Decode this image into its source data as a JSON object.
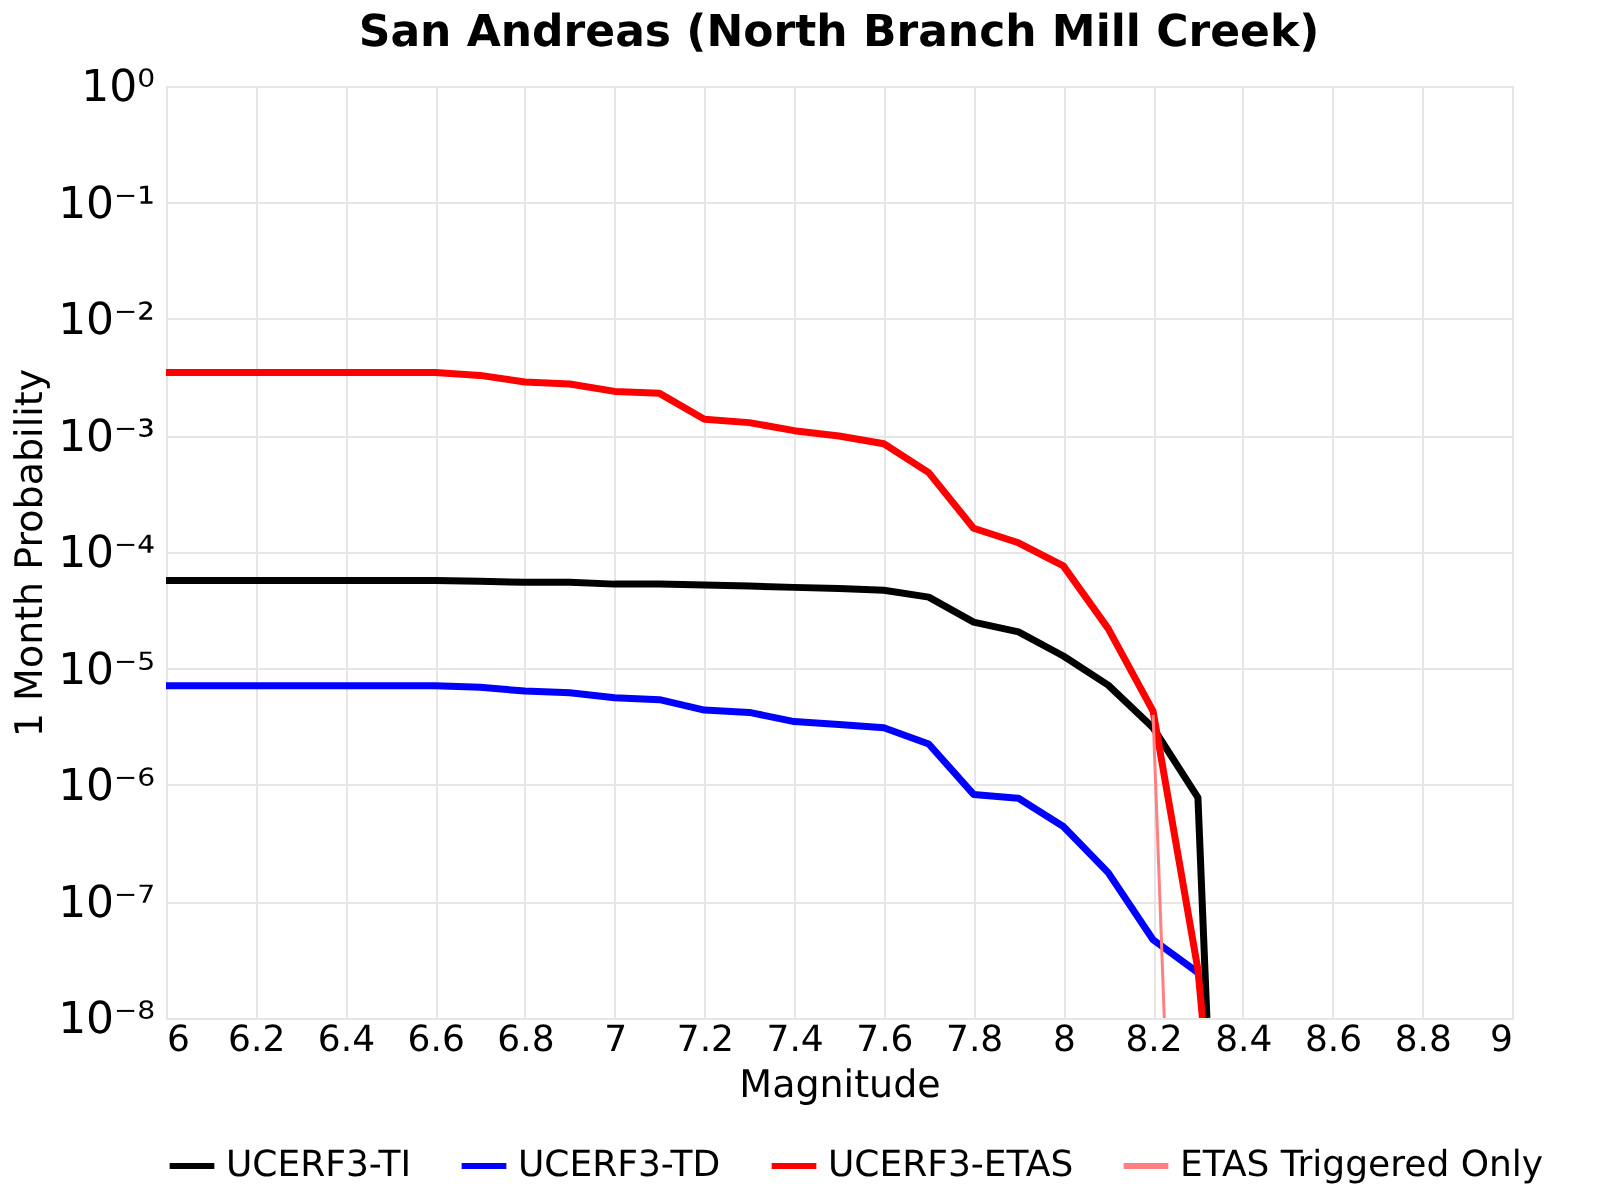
{
  "chart_data": {
    "type": "line",
    "title": "San Andreas (North Branch Mill Creek)",
    "xlabel": "Magnitude",
    "ylabel": "1 Month Probability",
    "log": "y",
    "grid": true,
    "legend": "bottom",
    "line_style": "solid",
    "marker": "none",
    "xlim": [
      6,
      9
    ],
    "xticks": [
      6,
      6.2,
      6.4,
      6.6,
      6.8,
      7,
      7.2,
      7.4,
      7.6,
      7.8,
      8,
      8.2,
      8.4,
      8.6,
      8.8,
      9
    ],
    "ylim": [
      1e-08,
      1
    ],
    "yticks": [
      {
        "value": 1e-08,
        "label": "10⁻⁸"
      },
      {
        "value": 1e-07,
        "label": "10⁻⁷"
      },
      {
        "value": 1e-06,
        "label": "10⁻⁶"
      },
      {
        "value": 1e-05,
        "label": "10⁻⁵"
      },
      {
        "value": 0.0001,
        "label": "10⁻⁴"
      },
      {
        "value": 0.001,
        "label": "10⁻³"
      },
      {
        "value": 0.01,
        "label": "10⁻²"
      },
      {
        "value": 0.1,
        "label": "10⁻¹"
      },
      {
        "value": 1,
        "label": "10⁰"
      }
    ],
    "series": [
      {
        "name": "UCERF3-TI",
        "color": "#000000",
        "x": [
          6.0,
          6.1,
          6.2,
          6.3,
          6.4,
          6.5,
          6.6,
          6.7,
          6.8,
          6.9,
          7.0,
          7.1,
          7.2,
          7.3,
          7.4,
          7.5,
          7.6,
          7.7,
          7.8,
          7.9,
          8.0,
          8.1,
          8.2,
          8.3,
          8.32
        ],
        "values": [
          5.7e-05,
          5.7e-05,
          5.7e-05,
          5.7e-05,
          5.7e-05,
          5.7e-05,
          5.7e-05,
          5.6e-05,
          5.5e-05,
          5.5e-05,
          5.3e-05,
          5.3e-05,
          5.2e-05,
          5.1e-05,
          4.97e-05,
          4.85e-05,
          4.7e-05,
          4.1e-05,
          2.5e-05,
          2.06e-05,
          1.28e-05,
          7.2e-06,
          3.1e-06,
          7.8e-07,
          1e-08
        ]
      },
      {
        "name": "UCERF3-TD",
        "color": "#0000ff",
        "x": [
          6.0,
          6.1,
          6.2,
          6.3,
          6.4,
          6.5,
          6.6,
          6.7,
          6.8,
          6.9,
          7.0,
          7.1,
          7.2,
          7.3,
          7.4,
          7.5,
          7.6,
          7.7,
          7.8,
          7.9,
          8.0,
          8.1,
          8.2,
          8.3
        ],
        "values": [
          7.1e-06,
          7.1e-06,
          7.1e-06,
          7.1e-06,
          7.1e-06,
          7.1e-06,
          7.1e-06,
          6.9e-06,
          6.4e-06,
          6.2e-06,
          5.6e-06,
          5.4e-06,
          4.4e-06,
          4.2e-06,
          3.5e-06,
          3.3e-06,
          3.1e-06,
          2.25e-06,
          8.3e-07,
          7.7e-07,
          4.4e-07,
          1.77e-07,
          4.7e-08,
          2.45e-08
        ]
      },
      {
        "name": "UCERF3-ETAS",
        "color": "#ff0000",
        "x": [
          6.0,
          6.1,
          6.2,
          6.3,
          6.4,
          6.5,
          6.6,
          6.7,
          6.8,
          6.9,
          7.0,
          7.1,
          7.2,
          7.3,
          7.4,
          7.5,
          7.6,
          7.7,
          7.8,
          7.9,
          8.0,
          8.1,
          8.2,
          8.3,
          8.31
        ],
        "values": [
          0.00347,
          0.00347,
          0.00347,
          0.00347,
          0.00347,
          0.00347,
          0.00347,
          0.00328,
          0.00288,
          0.00277,
          0.00239,
          0.0023,
          0.00138,
          0.00129,
          0.0011,
          0.00099,
          0.00085,
          0.00048,
          0.00016,
          0.00012,
          7.6e-05,
          2.2e-05,
          4.3e-06,
          2.6e-08,
          1e-08
        ]
      },
      {
        "name": "ETAS Triggered Only",
        "color": "#ff8080",
        "x": [
          8.2,
          8.225
        ],
        "values": [
          4e-06,
          1e-08
        ]
      }
    ]
  }
}
